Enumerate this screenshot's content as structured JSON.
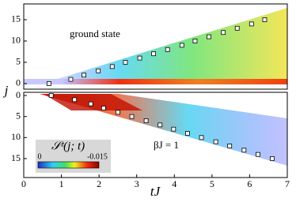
{
  "chart_data": {
    "type": "scatter",
    "xlabel": "tJ",
    "ylabel": "j",
    "xlim": [
      0,
      7
    ],
    "xticks": [
      0,
      1,
      2,
      3,
      4,
      5,
      6,
      7
    ],
    "marker_color": "#ffffff",
    "panels": [
      {
        "annotation": "ground state",
        "ylim": [
          -1.3,
          18.7
        ],
        "yticks": [
          0,
          5,
          10,
          15
        ],
        "x": [
          0.67,
          1.25,
          1.6,
          1.98,
          2.35,
          2.7,
          3.08,
          3.45,
          3.82,
          4.2,
          4.55,
          4.92,
          5.3,
          5.67,
          6.05,
          6.4
        ],
        "values": [
          0,
          1,
          2,
          3,
          4,
          5,
          6,
          7,
          8,
          9,
          10,
          11,
          12,
          13,
          14,
          15
        ]
      },
      {
        "annotation": "βJ = 1",
        "ylim": [
          19.5,
          -0.75
        ],
        "yticks": [
          0,
          5,
          10,
          15
        ],
        "x": [
          0.73,
          1.35,
          1.78,
          2.12,
          2.5,
          2.87,
          3.25,
          3.62,
          3.98,
          4.35,
          4.72,
          5.1,
          5.47,
          5.85,
          6.22,
          6.6
        ],
        "values": [
          0,
          1,
          2,
          3,
          4,
          5,
          6,
          7,
          8,
          9,
          10,
          11,
          12,
          13,
          14,
          15
        ]
      }
    ],
    "colorbar": {
      "label": "𝒮ᶻ(j; t)",
      "ticks": [
        0,
        -0.015
      ]
    }
  }
}
